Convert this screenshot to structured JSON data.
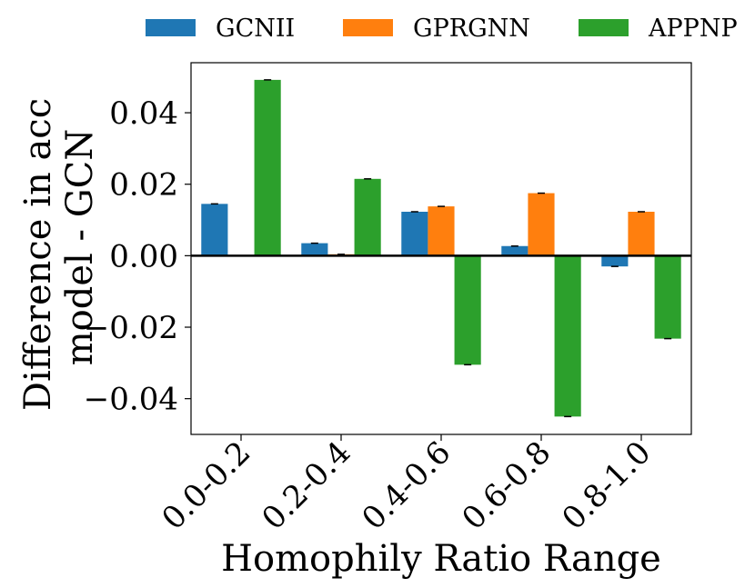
{
  "chart_data": {
    "type": "bar",
    "title": "",
    "xlabel": "Homophily Ratio Range",
    "ylabel_lines": [
      "Difference in acc",
      "model - GCN"
    ],
    "categories": [
      "0.0-0.2",
      "0.2-0.4",
      "0.4-0.6",
      "0.6-0.8",
      "0.8-1.0"
    ],
    "series": [
      {
        "name": "GCNII",
        "color": "#1f77b4",
        "values": [
          0.0145,
          0.0035,
          0.0123,
          0.0027,
          -0.003
        ]
      },
      {
        "name": "GPRGNN",
        "color": "#ff7f0e",
        "values": [
          0.0,
          0.0004,
          0.0138,
          0.0175,
          0.0123
        ]
      },
      {
        "name": "APPNP",
        "color": "#2ca02c",
        "values": [
          0.0492,
          0.0215,
          -0.0305,
          -0.045,
          -0.0232
        ]
      }
    ],
    "yticks": [
      0.04,
      0.02,
      0.0,
      -0.02,
      -0.04
    ],
    "ytick_labels": [
      "0.04",
      "0.02",
      "0.00",
      "−0.02",
      "−0.04"
    ],
    "ylim": [
      -0.05,
      0.054
    ],
    "legend_position": "top",
    "grid": false,
    "zero_line": true
  }
}
